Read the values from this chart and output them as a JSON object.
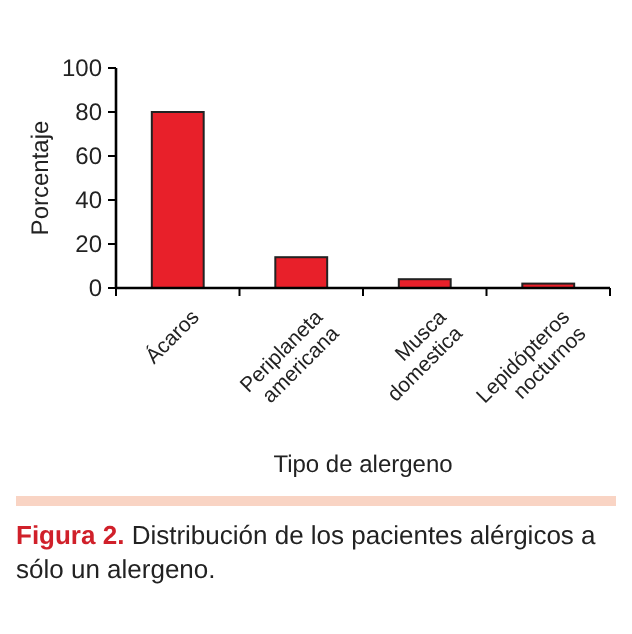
{
  "chart_data": {
    "type": "bar",
    "xlabel": "Tipo de alergeno",
    "ylabel": "Porcentaje",
    "categories": [
      "Ácaros",
      "Periplaneta americana",
      "Musca domestica",
      "Lepidópteros nocturnos"
    ],
    "values": [
      80,
      14,
      4,
      2
    ],
    "color": "#e8202a",
    "ylim": [
      0,
      100
    ],
    "yticks": [
      0,
      20,
      40,
      60,
      80,
      100
    ],
    "annotations": [
      "Figura 2.",
      "Distribución de los pacientes alérgicos a sólo un alergeno."
    ]
  }
}
